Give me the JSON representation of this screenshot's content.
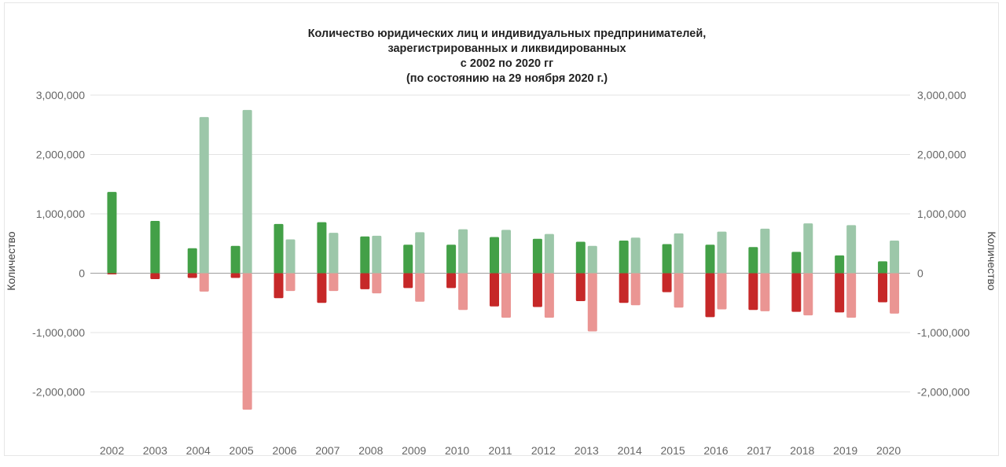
{
  "chart_data": {
    "type": "bar",
    "title_lines": [
      "Количество юридических лиц и индивидуальных предпринимателей,",
      "зарегистрированных и ликвидированных",
      "с 2002 по 2020 гг",
      "(по состоянию на 29 ноября 2020 г.)"
    ],
    "ylabel_left": "Количество",
    "ylabel_right": "Количество",
    "ylim": [
      -2600000,
      3000000
    ],
    "yticks": [
      3000000,
      2000000,
      1000000,
      0,
      -1000000,
      -2000000
    ],
    "ytick_labels": [
      "3,000,000",
      "2,000,000",
      "1,000,000",
      "0",
      "-1,000,000",
      "-2,000,000"
    ],
    "grid": true,
    "legend": "none",
    "categories": [
      "2002",
      "2003",
      "2004",
      "2005",
      "2006",
      "2007",
      "2008",
      "2009",
      "2010",
      "2011",
      "2012",
      "2013",
      "2014",
      "2015",
      "2016",
      "2017",
      "2018",
      "2019",
      "2020"
    ],
    "series": [
      {
        "color": "#43a047",
        "values": [
          1370000,
          880000,
          420000,
          460000,
          830000,
          860000,
          620000,
          480000,
          480000,
          610000,
          580000,
          530000,
          550000,
          490000,
          480000,
          440000,
          360000,
          300000,
          200000
        ]
      },
      {
        "color": "#c62828",
        "values": [
          -20000,
          -100000,
          -80000,
          -80000,
          -420000,
          -500000,
          -270000,
          -250000,
          -250000,
          -560000,
          -570000,
          -470000,
          -500000,
          -320000,
          -740000,
          -620000,
          -650000,
          -660000,
          -490000
        ]
      },
      {
        "color": "#9cc7a9",
        "values": [
          null,
          null,
          2630000,
          2750000,
          570000,
          680000,
          630000,
          690000,
          740000,
          730000,
          660000,
          460000,
          600000,
          670000,
          700000,
          750000,
          840000,
          810000,
          550000
        ]
      },
      {
        "color": "#ea9593",
        "values": [
          null,
          null,
          -310000,
          -2300000,
          -300000,
          -300000,
          -340000,
          -480000,
          -620000,
          -750000,
          -750000,
          -980000,
          -540000,
          -580000,
          -610000,
          -640000,
          -710000,
          -750000,
          -680000
        ]
      }
    ]
  }
}
